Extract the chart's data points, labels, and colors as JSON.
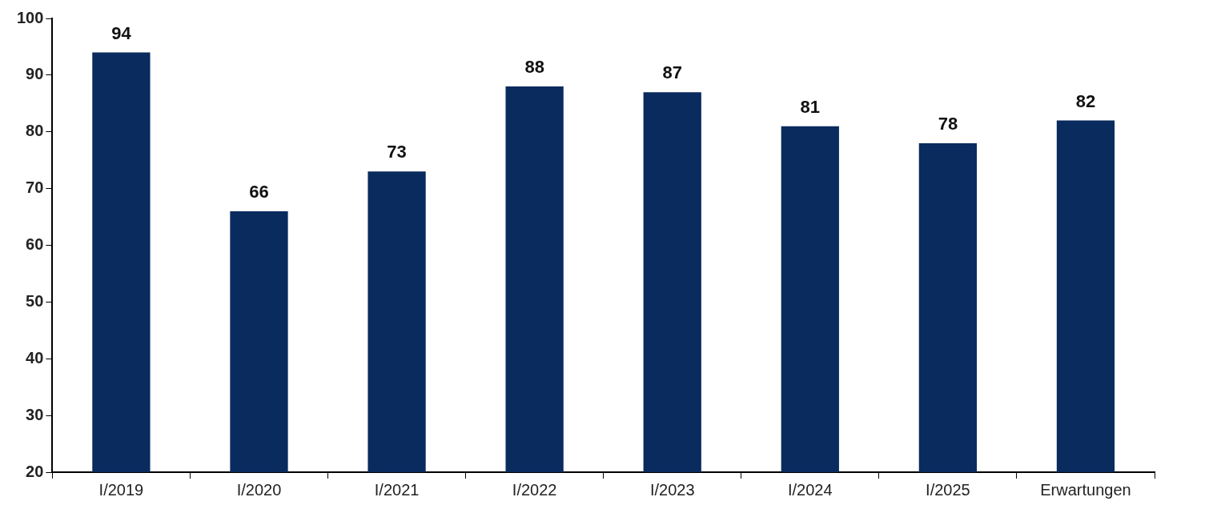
{
  "chart_data": {
    "type": "bar",
    "categories": [
      "I/2019",
      "I/2020",
      "I/2021",
      "I/2022",
      "I/2023",
      "I/2024",
      "I/2025",
      "Erwartungen"
    ],
    "values": [
      94,
      66,
      73,
      88,
      87,
      81,
      78,
      82
    ],
    "color": "#0a2b5e",
    "ylim": [
      20,
      100
    ],
    "yticks": [
      20,
      30,
      40,
      50,
      60,
      70,
      80,
      90,
      100
    ],
    "data_labels": true
  }
}
